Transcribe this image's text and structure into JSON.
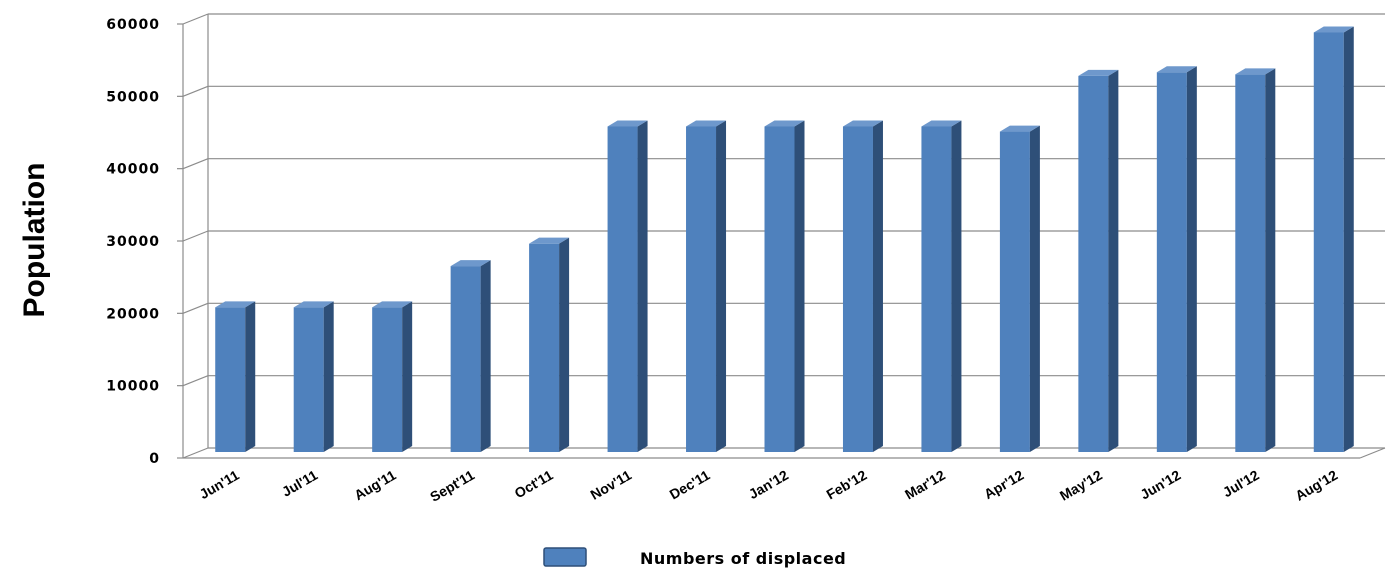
{
  "chart_data": {
    "type": "bar",
    "categories": [
      "Jun'11",
      "Jul'11",
      "Aug'11",
      "Sept'11",
      "Oct'11",
      "Nov'11",
      "Dec'11",
      "Jan'12",
      "Feb'12",
      "Mar'12",
      "Apr'12",
      "May'12",
      "Jun'12",
      "Jul'12",
      "Aug'12"
    ],
    "series": [
      {
        "name": "Numbers of displaced",
        "values": [
          20000,
          20000,
          20000,
          25700,
          28800,
          45000,
          45000,
          45000,
          45000,
          45000,
          44300,
          52000,
          52500,
          52200,
          58000
        ]
      }
    ],
    "xlabel": "",
    "ylabel": "Population",
    "ylim": [
      0,
      60000
    ],
    "yticks": [
      "0",
      "10000",
      "20000",
      "30000",
      "40000",
      "50000",
      "60000"
    ],
    "grid": true,
    "legend_position": "bottom",
    "style": "3d-column",
    "colors": {
      "bar_front": "#4F81BD",
      "bar_side": "#2E4F78",
      "bar_top": "#6E98CC",
      "gridline": "#8C8C8C"
    }
  }
}
